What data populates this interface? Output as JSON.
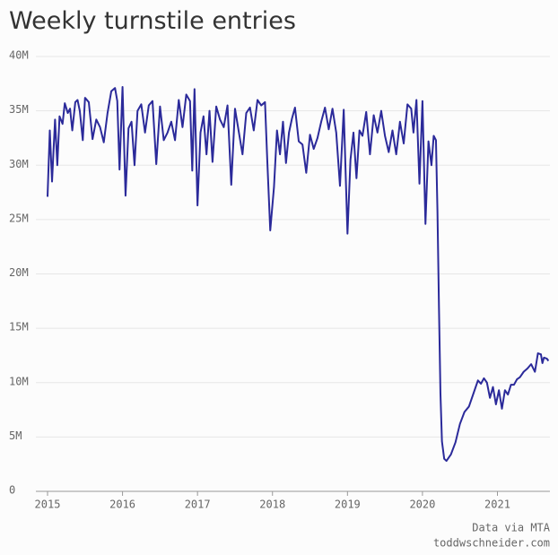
{
  "chart_data": {
    "type": "line",
    "title": "Weekly turnstile entries",
    "credits": [
      "Data via MTA",
      "toddwschneider.com"
    ],
    "xlim": [
      2015,
      2021.7
    ],
    "xticks": [
      2015,
      2016,
      2017,
      2018,
      2019,
      2020,
      2021
    ],
    "ylim": [
      0,
      40000000
    ],
    "yticks": [
      0,
      {
        "value": 5000000,
        "label": "5M"
      },
      {
        "value": 10000000,
        "label": "10M"
      },
      {
        "value": 15000000,
        "label": "15M"
      },
      {
        "value": 20000000,
        "label": "20M"
      },
      {
        "value": 25000000,
        "label": "25M"
      },
      {
        "value": 30000000,
        "label": "30M"
      },
      {
        "value": 35000000,
        "label": "35M"
      },
      {
        "value": 40000000,
        "label": "40M"
      }
    ],
    "grid": true,
    "series": [
      {
        "color": "#2b2a9a",
        "x": [
          2015.0,
          2015.03,
          2015.06,
          2015.1,
          2015.13,
          2015.16,
          2015.2,
          2015.23,
          2015.27,
          2015.3,
          2015.33,
          2015.37,
          2015.4,
          2015.43,
          2015.47,
          2015.5,
          2015.55,
          2015.6,
          2015.65,
          2015.7,
          2015.75,
          2015.8,
          2015.85,
          2015.9,
          2015.93,
          2015.96,
          2016.0,
          2016.04,
          2016.08,
          2016.12,
          2016.16,
          2016.2,
          2016.25,
          2016.3,
          2016.35,
          2016.4,
          2016.45,
          2016.5,
          2016.55,
          2016.6,
          2016.65,
          2016.7,
          2016.75,
          2016.8,
          2016.85,
          2016.9,
          2016.93,
          2016.96,
          2017.0,
          2017.04,
          2017.08,
          2017.12,
          2017.16,
          2017.2,
          2017.25,
          2017.3,
          2017.35,
          2017.4,
          2017.45,
          2017.5,
          2017.55,
          2017.6,
          2017.65,
          2017.7,
          2017.75,
          2017.8,
          2017.85,
          2017.9,
          2017.93,
          2017.97,
          2018.02,
          2018.06,
          2018.1,
          2018.14,
          2018.18,
          2018.22,
          2018.26,
          2018.3,
          2018.35,
          2018.4,
          2018.45,
          2018.5,
          2018.55,
          2018.6,
          2018.65,
          2018.7,
          2018.75,
          2018.8,
          2018.85,
          2018.9,
          2018.95,
          2019.0,
          2019.04,
          2019.08,
          2019.12,
          2019.16,
          2019.2,
          2019.25,
          2019.3,
          2019.35,
          2019.4,
          2019.45,
          2019.5,
          2019.55,
          2019.6,
          2019.65,
          2019.7,
          2019.75,
          2019.8,
          2019.85,
          2019.88,
          2019.92,
          2019.96,
          2020.0,
          2020.04,
          2020.08,
          2020.12,
          2020.15,
          2020.18,
          2020.2,
          2020.22,
          2020.24,
          2020.26,
          2020.29,
          2020.32,
          2020.38,
          2020.44,
          2020.5,
          2020.56,
          2020.62,
          2020.68,
          2020.74,
          2020.78,
          2020.82,
          2020.86,
          2020.9,
          2020.94,
          2020.98,
          2021.02,
          2021.06,
          2021.1,
          2021.14,
          2021.18,
          2021.22,
          2021.26,
          2021.3,
          2021.35,
          2021.4,
          2021.45,
          2021.5,
          2021.54,
          2021.58,
          2021.6,
          2021.62,
          2021.66,
          2021.68
        ],
        "values": [
          27100000,
          33200000,
          28500000,
          34200000,
          30000000,
          34500000,
          33800000,
          35700000,
          34800000,
          35200000,
          33200000,
          35800000,
          36000000,
          35000000,
          32300000,
          36200000,
          35800000,
          32400000,
          34200000,
          33500000,
          32100000,
          34800000,
          36800000,
          37100000,
          35900000,
          29600000,
          37200000,
          27200000,
          33400000,
          34000000,
          30000000,
          35000000,
          35600000,
          33000000,
          35500000,
          35900000,
          30100000,
          35400000,
          32300000,
          33000000,
          34000000,
          32300000,
          36000000,
          33500000,
          36500000,
          35900000,
          29500000,
          37000000,
          26300000,
          33000000,
          34500000,
          31000000,
          35000000,
          30300000,
          35400000,
          34200000,
          33500000,
          35500000,
          28200000,
          35200000,
          33100000,
          31000000,
          34800000,
          35300000,
          33200000,
          36000000,
          35500000,
          35800000,
          30500000,
          24000000,
          28000000,
          33200000,
          31000000,
          34000000,
          30200000,
          33000000,
          34300000,
          35300000,
          32200000,
          31900000,
          29300000,
          32800000,
          31500000,
          32500000,
          34000000,
          35300000,
          33300000,
          35200000,
          33000000,
          28100000,
          35100000,
          23700000,
          30500000,
          33000000,
          28800000,
          33200000,
          32700000,
          34900000,
          31000000,
          34600000,
          33000000,
          35000000,
          32700000,
          31200000,
          33200000,
          31000000,
          34000000,
          32000000,
          35600000,
          35200000,
          33000000,
          36000000,
          28300000,
          35900000,
          24600000,
          32200000,
          30000000,
          32700000,
          32300000,
          25800000,
          17000000,
          9000000,
          4600000,
          3000000,
          2800000,
          3400000,
          4500000,
          6200000,
          7300000,
          7800000,
          9000000,
          10200000,
          9900000,
          10400000,
          10000000,
          8600000,
          9600000,
          8000000,
          9300000,
          7600000,
          9300000,
          8900000,
          9800000,
          9800000,
          10300000,
          10500000,
          11000000,
          11300000,
          11700000,
          11000000,
          12700000,
          12600000,
          11800000,
          12300000,
          12200000,
          12000000
        ]
      }
    ]
  }
}
